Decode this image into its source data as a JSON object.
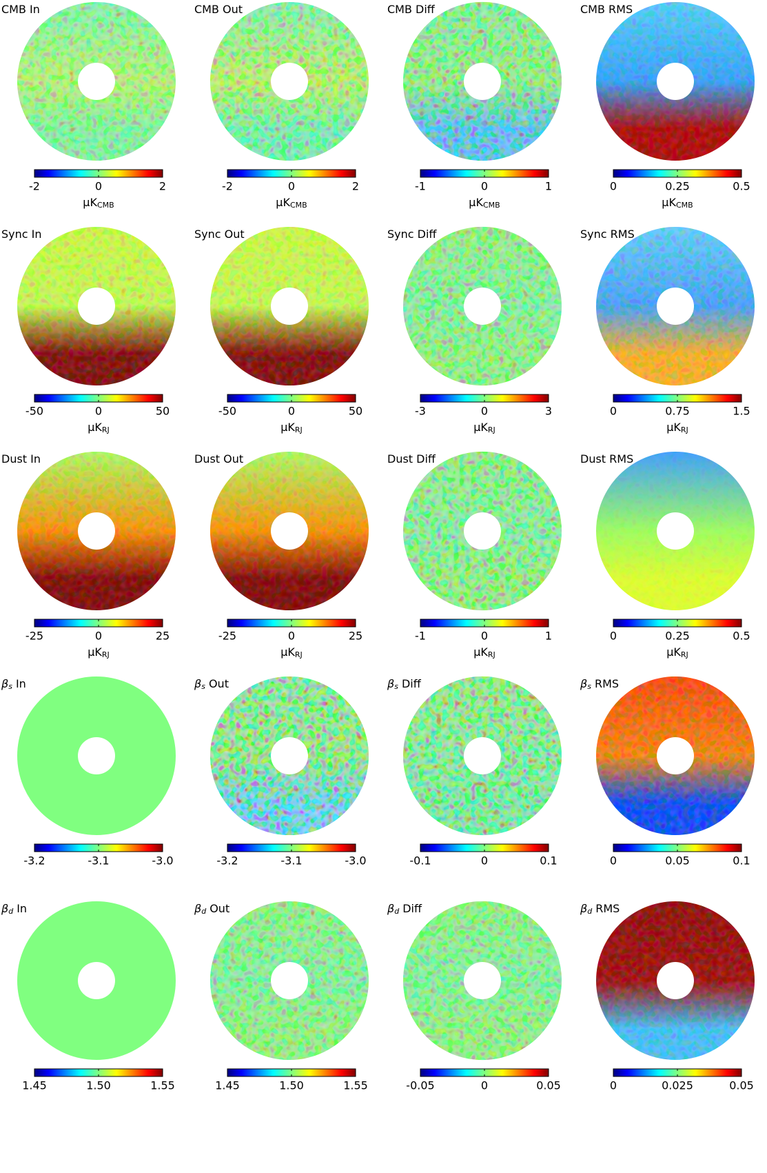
{
  "chart_data": [
    {
      "type": "heatmap",
      "title": "CMB In",
      "clim": [
        -2,
        2
      ],
      "cticks": [
        -2,
        0,
        2
      ],
      "colormap": "jet",
      "colorbar_label": "μK",
      "colorbar_label_subscript": "CMB"
    },
    {
      "type": "heatmap",
      "title": "CMB Out",
      "clim": [
        -2,
        2
      ],
      "cticks": [
        -2,
        0,
        2
      ],
      "colormap": "jet",
      "colorbar_label": "μK",
      "colorbar_label_subscript": "CMB"
    },
    {
      "type": "heatmap",
      "title": "CMB Diff",
      "clim": [
        -1,
        1
      ],
      "cticks": [
        -1,
        0,
        1
      ],
      "colormap": "jet",
      "colorbar_label": "μK",
      "colorbar_label_subscript": "CMB"
    },
    {
      "type": "heatmap",
      "title": "CMB RMS",
      "clim": [
        0,
        0.5
      ],
      "cticks": [
        0,
        0.25,
        0.5
      ],
      "colormap": "jet",
      "colorbar_label": "μK",
      "colorbar_label_subscript": "CMB"
    },
    {
      "type": "heatmap",
      "title": "Sync In",
      "clim": [
        -50,
        50
      ],
      "cticks": [
        -50,
        0,
        50
      ],
      "colormap": "jet",
      "colorbar_label": "μK",
      "colorbar_label_subscript": "RJ"
    },
    {
      "type": "heatmap",
      "title": "Sync Out",
      "clim": [
        -50,
        50
      ],
      "cticks": [
        -50,
        0,
        50
      ],
      "colormap": "jet",
      "colorbar_label": "μK",
      "colorbar_label_subscript": "RJ"
    },
    {
      "type": "heatmap",
      "title": "Sync Diff",
      "clim": [
        -3,
        3
      ],
      "cticks": [
        -3,
        0,
        3
      ],
      "colormap": "jet",
      "colorbar_label": "μK",
      "colorbar_label_subscript": "RJ"
    },
    {
      "type": "heatmap",
      "title": "Sync RMS",
      "clim": [
        0,
        1.5
      ],
      "cticks": [
        0,
        0.75,
        1.5
      ],
      "colormap": "jet",
      "colorbar_label": "μK",
      "colorbar_label_subscript": "RJ"
    },
    {
      "type": "heatmap",
      "title": "Dust In",
      "clim": [
        -25,
        25
      ],
      "cticks": [
        -25,
        0,
        25
      ],
      "colormap": "jet",
      "colorbar_label": "μK",
      "colorbar_label_subscript": "RJ"
    },
    {
      "type": "heatmap",
      "title": "Dust Out",
      "clim": [
        -25,
        25
      ],
      "cticks": [
        -25,
        0,
        25
      ],
      "colormap": "jet",
      "colorbar_label": "μK",
      "colorbar_label_subscript": "RJ"
    },
    {
      "type": "heatmap",
      "title": "Dust Diff",
      "clim": [
        -1,
        1
      ],
      "cticks": [
        -1,
        0,
        1
      ],
      "colormap": "jet",
      "colorbar_label": "μK",
      "colorbar_label_subscript": "RJ"
    },
    {
      "type": "heatmap",
      "title": "Dust RMS",
      "clim": [
        0,
        0.5
      ],
      "cticks": [
        0,
        0.25,
        0.5
      ],
      "colormap": "jet",
      "colorbar_label": "μK",
      "colorbar_label_subscript": "RJ"
    },
    {
      "type": "heatmap",
      "title_symbol": "β",
      "title_subscript": "s",
      "title": "In",
      "clim": [
        -3.2,
        -3
      ],
      "cticks": [
        -3.2,
        -3.1,
        {
          "value": -3,
          "label": "-3.0"
        }
      ],
      "colormap": "jet"
    },
    {
      "type": "heatmap",
      "title_symbol": "β",
      "title_subscript": "s",
      "title": "Out",
      "clim": [
        -3.2,
        -3
      ],
      "cticks": [
        -3.2,
        -3.1,
        {
          "value": -3,
          "label": "-3.0"
        }
      ],
      "colormap": "jet"
    },
    {
      "type": "heatmap",
      "title_symbol": "β",
      "title_subscript": "s",
      "title": "Diff",
      "clim": [
        -0.1,
        0.1
      ],
      "cticks": [
        -0.1,
        0,
        0.1
      ],
      "colormap": "jet"
    },
    {
      "type": "heatmap",
      "title_symbol": "β",
      "title_subscript": "s",
      "title": "RMS",
      "clim": [
        0,
        0.1
      ],
      "cticks": [
        0,
        0.05,
        0.1
      ],
      "colormap": "jet"
    },
    {
      "type": "heatmap",
      "title_symbol": "β",
      "title_subscript": "d",
      "title": "In",
      "clim": [
        1.45,
        1.55
      ],
      "cticks": [
        1.45,
        {
          "value": 1.5,
          "label": "1.50"
        },
        1.55
      ],
      "colormap": "jet"
    },
    {
      "type": "heatmap",
      "title_symbol": "β",
      "title_subscript": "d",
      "title": "Out",
      "clim": [
        1.45,
        1.55
      ],
      "cticks": [
        1.45,
        {
          "value": 1.5,
          "label": "1.50"
        },
        1.55
      ],
      "colormap": "jet"
    },
    {
      "type": "heatmap",
      "title_symbol": "β",
      "title_subscript": "d",
      "title": "Diff",
      "clim": [
        -0.05,
        0.05
      ],
      "cticks": [
        -0.05,
        0,
        0.05
      ],
      "colormap": "jet"
    },
    {
      "type": "heatmap",
      "title_symbol": "β",
      "title_subscript": "d",
      "title": "RMS",
      "clim": [
        0,
        0.05
      ],
      "cticks": [
        0,
        0.025,
        0.05
      ],
      "colormap": "jet"
    }
  ]
}
